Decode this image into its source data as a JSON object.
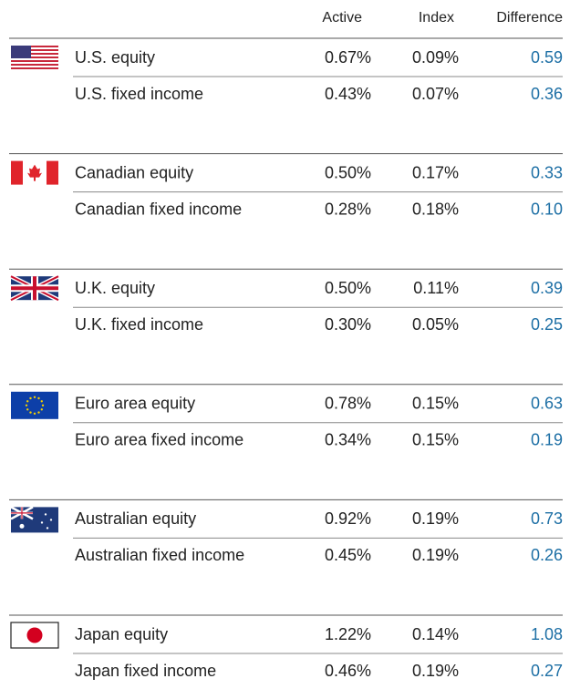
{
  "header": [
    "Active",
    "Index",
    "Difference"
  ],
  "groups": [
    {
      "rows": [
        {
          "label": "U.S. equity",
          "active": "0.67%",
          "index": "0.09%",
          "difference": "0.59"
        },
        {
          "label": "U.S. fixed income",
          "active": "0.43%",
          "index": "0.07%",
          "difference": "0.36"
        }
      ]
    },
    {
      "rows": [
        {
          "label": "Canadian equity",
          "active": "0.50%",
          "index": "0.17%",
          "difference": "0.33"
        },
        {
          "label": "Canadian fixed income",
          "active": "0.28%",
          "index": "0.18%",
          "difference": "0.10"
        }
      ]
    },
    {
      "rows": [
        {
          "label": "U.K. equity",
          "active": "0.50%",
          "index": "0.11%",
          "difference": "0.39"
        },
        {
          "label": "U.K. fixed income",
          "active": "0.30%",
          "index": "0.05%",
          "difference": "0.25"
        }
      ]
    },
    {
      "rows": [
        {
          "label": "Euro area equity",
          "active": "0.78%",
          "index": "0.15%",
          "difference": "0.63"
        },
        {
          "label": "Euro area fixed income",
          "active": "0.34%",
          "index": "0.15%",
          "difference": "0.19"
        }
      ]
    },
    {
      "rows": [
        {
          "label": "Australian equity",
          "active": "0.92%",
          "index": "0.19%",
          "difference": "0.73"
        },
        {
          "label": "Australian fixed income",
          "active": "0.45%",
          "index": "0.19%",
          "difference": "0.26"
        }
      ]
    },
    {
      "rows": [
        {
          "label": "Japan equity",
          "active": "1.22%",
          "index": "0.14%",
          "difference": "1.08"
        },
        {
          "label": "Japan fixed income",
          "active": "0.46%",
          "index": "0.19%",
          "difference": "0.27"
        }
      ]
    }
  ]
}
